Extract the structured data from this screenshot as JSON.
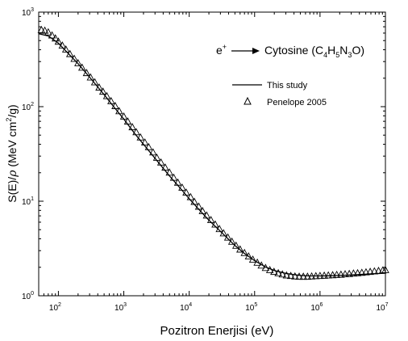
{
  "chart_data": {
    "type": "line",
    "title": "",
    "xlabel": "Pozitron Enerjisi (eV)",
    "ylabel_parts": {
      "pre": "S(E)/",
      "rho": "ρ",
      "unit_pre": " (MeV cm",
      "unit_sup": "2",
      "unit_post": "/g)"
    },
    "xscale": "log",
    "yscale": "log",
    "xlim": [
      50,
      10000000
    ],
    "ylim": [
      1,
      1000
    ],
    "x_ticks": [
      {
        "value": 100,
        "base": "10",
        "exp": "2"
      },
      {
        "value": 1000,
        "base": "10",
        "exp": "3"
      },
      {
        "value": 10000,
        "base": "10",
        "exp": "4"
      },
      {
        "value": 100000,
        "base": "10",
        "exp": "5"
      },
      {
        "value": 1000000,
        "base": "10",
        "exp": "6"
      },
      {
        "value": 10000000,
        "base": "10",
        "exp": "7"
      }
    ],
    "y_ticks": [
      {
        "value": 1,
        "base": "10",
        "exp": "0"
      },
      {
        "value": 10,
        "base": "10",
        "exp": "1"
      },
      {
        "value": 100,
        "base": "10",
        "exp": "2"
      },
      {
        "value": 1000,
        "base": "10",
        "exp": "3"
      }
    ],
    "annotation": {
      "particle": "e",
      "particle_sup": "+",
      "target_parts": [
        {
          "t": "Cytosine (C",
          "sub": false
        },
        {
          "t": "4",
          "sub": true
        },
        {
          "t": "H",
          "sub": false
        },
        {
          "t": "5",
          "sub": true
        },
        {
          "t": "N",
          "sub": false
        },
        {
          "t": "3",
          "sub": true
        },
        {
          "t": "O)",
          "sub": false
        }
      ]
    },
    "legend_position": "top-right",
    "series": [
      {
        "name": "This study",
        "style": "line",
        "color": "#000000",
        "x": [
          50,
          70,
          100,
          150,
          200,
          300,
          500,
          700,
          1000,
          1500,
          2000,
          3000,
          5000,
          7000,
          10000,
          15000,
          20000,
          30000,
          50000,
          70000,
          100000,
          150000,
          200000,
          300000,
          500000,
          700000,
          1000000,
          1500000,
          2000000,
          3000000,
          5000000,
          7000000,
          10000000
        ],
        "y": [
          590,
          560,
          470,
          350,
          285,
          205,
          134,
          100,
          74,
          51,
          40,
          28.5,
          18.5,
          14.2,
          10.6,
          7.8,
          6.3,
          4.8,
          3.4,
          2.8,
          2.35,
          2.0,
          1.85,
          1.72,
          1.64,
          1.62,
          1.62,
          1.63,
          1.64,
          1.66,
          1.69,
          1.71,
          1.73
        ]
      },
      {
        "name": "Penelope 2005",
        "style": "open-triangle",
        "color": "#000000",
        "x": [
          55,
          62,
          70,
          80,
          90,
          100,
          115,
          130,
          150,
          175,
          200,
          230,
          270,
          310,
          360,
          420,
          480,
          550,
          640,
          740,
          850,
          1000,
          1150,
          1350,
          1550,
          1800,
          2100,
          2400,
          2800,
          3200,
          3700,
          4300,
          5000,
          5800,
          6700,
          7800,
          9000,
          10500,
          12000,
          14000,
          16000,
          18500,
          21500,
          25000,
          29000,
          33500,
          39000,
          45000,
          52000,
          60000,
          70000,
          81000,
          94000,
          110000,
          127000,
          147000,
          171000,
          198000,
          230000,
          266000,
          308000,
          357000,
          414000,
          480000,
          556000,
          644000,
          746000,
          864000,
          1000000,
          1160000,
          1340000,
          1560000,
          1800000,
          2090000,
          2420000,
          2800000,
          3250000,
          3760000,
          4360000,
          5050000,
          5850000,
          6780000,
          7850000,
          9100000,
          10000000
        ],
        "y": [
          650,
          640,
          615,
          570,
          530,
          490,
          445,
          405,
          362,
          322,
          290,
          260,
          228,
          205,
          182,
          160,
          145,
          130,
          115,
          102,
          90,
          79,
          70,
          61,
          54,
          47.5,
          42,
          37.5,
          33,
          29,
          25.8,
          22.8,
          20.2,
          17.8,
          15.8,
          14,
          12.4,
          11.1,
          9.9,
          8.8,
          7.9,
          7.1,
          6.35,
          5.7,
          5.1,
          4.6,
          4.15,
          3.75,
          3.4,
          3.1,
          2.85,
          2.62,
          2.42,
          2.25,
          2.1,
          1.98,
          1.88,
          1.8,
          1.74,
          1.69,
          1.65,
          1.63,
          1.61,
          1.6,
          1.6,
          1.6,
          1.61,
          1.62,
          1.63,
          1.64,
          1.65,
          1.66,
          1.67,
          1.68,
          1.7,
          1.71,
          1.73,
          1.74,
          1.76,
          1.78,
          1.8,
          1.82,
          1.84,
          1.86,
          1.88
        ]
      }
    ]
  }
}
